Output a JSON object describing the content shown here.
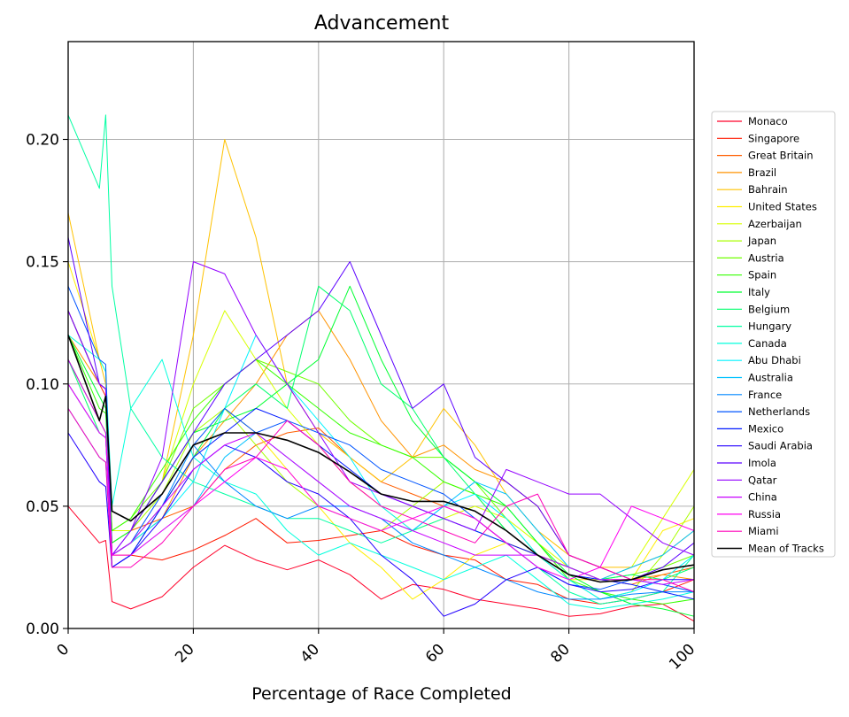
{
  "chart_data": {
    "type": "line",
    "title": "Advancement",
    "xlabel": "Percentage of Race Completed",
    "ylabel": "",
    "xlim": [
      0,
      100
    ],
    "ylim": [
      0,
      0.24
    ],
    "xticks": [
      0,
      20,
      40,
      60,
      80,
      100
    ],
    "yticks": [
      0.0,
      0.05,
      0.1,
      0.15,
      0.2
    ],
    "xtick_labels": [
      "0",
      "20",
      "40",
      "60",
      "80",
      "100"
    ],
    "ytick_labels": [
      "0.00",
      "0.05",
      "0.10",
      "0.15",
      "0.20"
    ],
    "grid": true,
    "legend_position": "right",
    "x": [
      0,
      5,
      6,
      7,
      10,
      15,
      20,
      25,
      30,
      35,
      40,
      45,
      50,
      55,
      60,
      65,
      70,
      75,
      80,
      85,
      90,
      95,
      100
    ],
    "series": [
      {
        "name": "Monaco",
        "color": "#ff0029",
        "values": [
          0.05,
          0.035,
          0.036,
          0.011,
          0.008,
          0.013,
          0.025,
          0.034,
          0.028,
          0.024,
          0.028,
          0.022,
          0.012,
          0.018,
          0.016,
          0.012,
          0.01,
          0.008,
          0.005,
          0.006,
          0.009,
          0.01,
          0.003
        ]
      },
      {
        "name": "Singapore",
        "color": "#ff1a00",
        "values": [
          0.13,
          0.1,
          0.095,
          0.03,
          0.03,
          0.028,
          0.032,
          0.038,
          0.045,
          0.035,
          0.036,
          0.038,
          0.04,
          0.034,
          0.03,
          0.028,
          0.02,
          0.018,
          0.012,
          0.01,
          0.012,
          0.015,
          0.02
        ]
      },
      {
        "name": "Great Britain",
        "color": "#ff5e00",
        "values": [
          0.11,
          0.085,
          0.08,
          0.035,
          0.04,
          0.045,
          0.05,
          0.065,
          0.075,
          0.08,
          0.082,
          0.07,
          0.06,
          0.055,
          0.05,
          0.045,
          0.035,
          0.03,
          0.025,
          0.02,
          0.018,
          0.022,
          0.025
        ]
      },
      {
        "name": "Brazil",
        "color": "#ff9300",
        "values": [
          0.12,
          0.1,
          0.098,
          0.03,
          0.035,
          0.045,
          0.07,
          0.085,
          0.1,
          0.12,
          0.13,
          0.11,
          0.085,
          0.07,
          0.075,
          0.065,
          0.06,
          0.05,
          0.03,
          0.025,
          0.02,
          0.022,
          0.02
        ]
      },
      {
        "name": "Bahrain",
        "color": "#ffc200",
        "values": [
          0.17,
          0.11,
          0.1,
          0.04,
          0.04,
          0.06,
          0.12,
          0.2,
          0.16,
          0.1,
          0.08,
          0.07,
          0.06,
          0.07,
          0.09,
          0.075,
          0.055,
          0.04,
          0.03,
          0.025,
          0.025,
          0.03,
          0.04
        ]
      },
      {
        "name": "United States",
        "color": "#ffee00",
        "values": [
          0.15,
          0.11,
          0.105,
          0.03,
          0.03,
          0.05,
          0.07,
          0.09,
          0.08,
          0.065,
          0.05,
          0.035,
          0.025,
          0.012,
          0.02,
          0.03,
          0.035,
          0.03,
          0.02,
          0.02,
          0.02,
          0.04,
          0.045
        ]
      },
      {
        "name": "Azerbaijan",
        "color": "#d8ff00",
        "values": [
          0.13,
          0.1,
          0.098,
          0.04,
          0.04,
          0.06,
          0.1,
          0.13,
          0.11,
          0.09,
          0.075,
          0.06,
          0.05,
          0.04,
          0.045,
          0.05,
          0.045,
          0.035,
          0.025,
          0.02,
          0.025,
          0.045,
          0.065
        ]
      },
      {
        "name": "Japan",
        "color": "#a9ff00",
        "values": [
          0.11,
          0.085,
          0.08,
          0.035,
          0.04,
          0.055,
          0.08,
          0.09,
          0.075,
          0.06,
          0.05,
          0.045,
          0.04,
          0.05,
          0.06,
          0.055,
          0.04,
          0.03,
          0.02,
          0.012,
          0.015,
          0.03,
          0.05
        ]
      },
      {
        "name": "Austria",
        "color": "#71ff00",
        "values": [
          0.13,
          0.1,
          0.098,
          0.04,
          0.045,
          0.06,
          0.09,
          0.1,
          0.11,
          0.105,
          0.1,
          0.085,
          0.075,
          0.07,
          0.07,
          0.06,
          0.045,
          0.03,
          0.025,
          0.02,
          0.022,
          0.025,
          0.03
        ]
      },
      {
        "name": "Spain",
        "color": "#35ff00",
        "values": [
          0.12,
          0.09,
          0.088,
          0.04,
          0.045,
          0.065,
          0.085,
          0.1,
          0.11,
          0.1,
          0.09,
          0.08,
          0.075,
          0.07,
          0.06,
          0.055,
          0.05,
          0.035,
          0.02,
          0.015,
          0.012,
          0.01,
          0.012
        ]
      },
      {
        "name": "Italy",
        "color": "#00ff31",
        "values": [
          0.12,
          0.095,
          0.09,
          0.035,
          0.04,
          0.06,
          0.08,
          0.085,
          0.09,
          0.1,
          0.11,
          0.14,
          0.11,
          0.085,
          0.07,
          0.06,
          0.05,
          0.035,
          0.022,
          0.015,
          0.01,
          0.008,
          0.005
        ]
      },
      {
        "name": "Belgium",
        "color": "#00ff6c",
        "values": [
          0.11,
          0.08,
          0.078,
          0.03,
          0.035,
          0.05,
          0.07,
          0.09,
          0.1,
          0.09,
          0.14,
          0.13,
          0.1,
          0.09,
          0.07,
          0.055,
          0.04,
          0.03,
          0.025,
          0.02,
          0.022,
          0.02,
          0.025
        ]
      },
      {
        "name": "Hungary",
        "color": "#00ffa3",
        "values": [
          0.21,
          0.18,
          0.21,
          0.14,
          0.09,
          0.07,
          0.06,
          0.055,
          0.05,
          0.045,
          0.045,
          0.04,
          0.035,
          0.04,
          0.045,
          0.04,
          0.035,
          0.025,
          0.015,
          0.01,
          0.012,
          0.015,
          0.03
        ]
      },
      {
        "name": "Canada",
        "color": "#00ffdd",
        "values": [
          0.12,
          0.11,
          0.105,
          0.05,
          0.09,
          0.11,
          0.07,
          0.06,
          0.055,
          0.04,
          0.03,
          0.035,
          0.03,
          0.025,
          0.02,
          0.025,
          0.03,
          0.02,
          0.01,
          0.008,
          0.01,
          0.012,
          0.015
        ]
      },
      {
        "name": "Abu Dhabi",
        "color": "#00f3ff",
        "values": [
          0.1,
          0.08,
          0.078,
          0.03,
          0.035,
          0.045,
          0.06,
          0.09,
          0.12,
          0.1,
          0.085,
          0.07,
          0.05,
          0.04,
          0.05,
          0.055,
          0.045,
          0.03,
          0.02,
          0.012,
          0.015,
          0.02,
          0.03
        ]
      },
      {
        "name": "Australia",
        "color": "#00c1ff",
        "values": [
          0.09,
          0.07,
          0.068,
          0.025,
          0.03,
          0.04,
          0.05,
          0.07,
          0.08,
          0.07,
          0.06,
          0.05,
          0.045,
          0.04,
          0.05,
          0.06,
          0.055,
          0.04,
          0.025,
          0.02,
          0.025,
          0.03,
          0.04
        ]
      },
      {
        "name": "France",
        "color": "#0087ff",
        "values": [
          0.1,
          0.08,
          0.078,
          0.025,
          0.03,
          0.05,
          0.075,
          0.06,
          0.05,
          0.045,
          0.05,
          0.05,
          0.045,
          0.035,
          0.03,
          0.025,
          0.02,
          0.015,
          0.012,
          0.012,
          0.014,
          0.015,
          0.015
        ]
      },
      {
        "name": "Netherlands",
        "color": "#0055ff",
        "values": [
          0.14,
          0.11,
          0.108,
          0.03,
          0.035,
          0.055,
          0.075,
          0.09,
          0.08,
          0.085,
          0.08,
          0.075,
          0.065,
          0.06,
          0.055,
          0.045,
          0.035,
          0.025,
          0.018,
          0.016,
          0.02,
          0.018,
          0.015
        ]
      },
      {
        "name": "Mexico",
        "color": "#0019ff",
        "values": [
          0.13,
          0.1,
          0.098,
          0.025,
          0.03,
          0.05,
          0.07,
          0.08,
          0.09,
          0.085,
          0.075,
          0.065,
          0.055,
          0.05,
          0.045,
          0.04,
          0.035,
          0.03,
          0.022,
          0.02,
          0.018,
          0.015,
          0.012
        ]
      },
      {
        "name": "Saudi Arabia",
        "color": "#2200ff",
        "values": [
          0.08,
          0.06,
          0.058,
          0.025,
          0.03,
          0.045,
          0.065,
          0.075,
          0.07,
          0.06,
          0.055,
          0.045,
          0.03,
          0.02,
          0.005,
          0.01,
          0.02,
          0.025,
          0.018,
          0.015,
          0.016,
          0.02,
          0.02
        ]
      },
      {
        "name": "Imola",
        "color": "#5c00ff",
        "values": [
          0.16,
          0.1,
          0.098,
          0.03,
          0.04,
          0.06,
          0.08,
          0.1,
          0.11,
          0.12,
          0.13,
          0.15,
          0.12,
          0.09,
          0.1,
          0.07,
          0.06,
          0.05,
          0.03,
          0.025,
          0.02,
          0.025,
          0.035
        ]
      },
      {
        "name": "Qatar",
        "color": "#9300ff",
        "values": [
          0.13,
          0.1,
          0.098,
          0.03,
          0.04,
          0.07,
          0.15,
          0.145,
          0.12,
          0.1,
          0.08,
          0.06,
          0.055,
          0.05,
          0.045,
          0.04,
          0.065,
          0.06,
          0.055,
          0.055,
          0.045,
          0.035,
          0.03
        ]
      },
      {
        "name": "China",
        "color": "#c800ff",
        "values": [
          0.11,
          0.085,
          0.08,
          0.03,
          0.035,
          0.05,
          0.065,
          0.075,
          0.08,
          0.07,
          0.06,
          0.05,
          0.045,
          0.04,
          0.035,
          0.03,
          0.03,
          0.03,
          0.025,
          0.02,
          0.02,
          0.018,
          0.02
        ]
      },
      {
        "name": "Russia",
        "color": "#ff00f0",
        "values": [
          0.1,
          0.08,
          0.078,
          0.03,
          0.03,
          0.04,
          0.05,
          0.06,
          0.07,
          0.065,
          0.05,
          0.045,
          0.04,
          0.045,
          0.05,
          0.045,
          0.035,
          0.025,
          0.02,
          0.025,
          0.05,
          0.045,
          0.04
        ]
      },
      {
        "name": "Miami",
        "color": "#ff00b8",
        "values": [
          0.09,
          0.07,
          0.068,
          0.025,
          0.025,
          0.035,
          0.05,
          0.065,
          0.07,
          0.085,
          0.075,
          0.06,
          0.05,
          0.045,
          0.04,
          0.035,
          0.05,
          0.055,
          0.03,
          0.025,
          0.02,
          0.02,
          0.015
        ]
      },
      {
        "name": "Mean of Tracks",
        "color": "#000000",
        "values": [
          0.12,
          0.085,
          0.095,
          0.048,
          0.044,
          0.055,
          0.075,
          0.08,
          0.08,
          0.077,
          0.072,
          0.064,
          0.055,
          0.052,
          0.052,
          0.048,
          0.04,
          0.03,
          0.022,
          0.019,
          0.02,
          0.024,
          0.026
        ]
      }
    ]
  }
}
